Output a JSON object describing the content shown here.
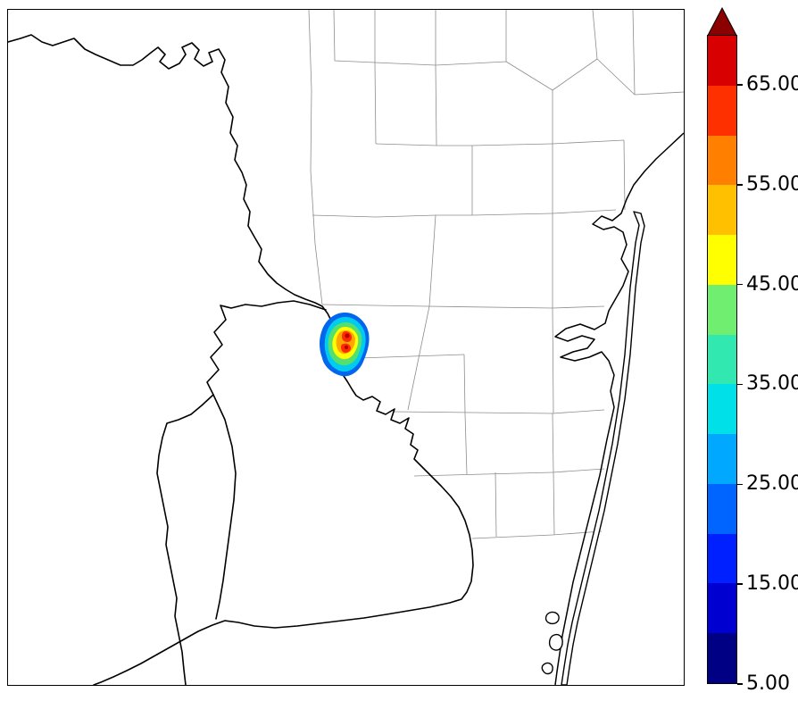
{
  "figure": {
    "background": "#ffffff",
    "frame_color": "#000000",
    "description": "Radar reflectivity contour plot over county/coastline basemap with vertical colorbar"
  },
  "map": {
    "county_line_color": "#8c8c8c",
    "boundary_line_color": "#000000",
    "water_fill": "#ffffff",
    "echo": {
      "levels": [
        {
          "name": "outer-blue",
          "color": "#0066ee",
          "outline": "#000080"
        },
        {
          "name": "cyan",
          "color": "#00cdee"
        },
        {
          "name": "green",
          "color": "#55e06e"
        },
        {
          "name": "yellow",
          "color": "#ffff00"
        },
        {
          "name": "orange",
          "color": "#ffa500"
        },
        {
          "name": "red",
          "color": "#ff2a00"
        },
        {
          "name": "dark-red",
          "color": "#b40000"
        }
      ]
    }
  },
  "colorbar": {
    "min": 5,
    "max": 70,
    "tick_values": [
      5,
      15,
      25,
      35,
      45,
      55,
      65
    ],
    "tick_labels": [
      "5.00",
      "15.00",
      "25.00",
      "35.00",
      "45.00",
      "55.00",
      "65.00"
    ],
    "segment_colors_bottom_to_top": [
      "#000085",
      "#0000d0",
      "#0020ff",
      "#0064ff",
      "#00a8ff",
      "#00e0e8",
      "#30e8b0",
      "#70ee70",
      "#ffff00",
      "#ffc000",
      "#ff8000",
      "#ff3000",
      "#d80000"
    ],
    "extend_arrow_color": "#8b0000",
    "tick_color": "#000000",
    "label_color": "#000000"
  },
  "chart_data": {
    "type": "heatmap",
    "title": "",
    "xlabel": "",
    "ylabel": "",
    "colormap": "jet",
    "value_range": [
      5,
      70
    ],
    "colorbar_tick_values": [
      5,
      15,
      25,
      35,
      45,
      55,
      65
    ],
    "colorbar_tick_labels": [
      "5.00",
      "15.00",
      "25.00",
      "35.00",
      "45.00",
      "55.00",
      "65.00"
    ],
    "colorbar_extend": "max",
    "legend_position": "right",
    "grid": false,
    "content_note": "Single small convective echo cell near map center-left with peak values above 65; remainder of domain empty. Basemap shows thin county boundaries, thick national-border/river lines, Gulf coastline with lagoon and barrier island."
  }
}
